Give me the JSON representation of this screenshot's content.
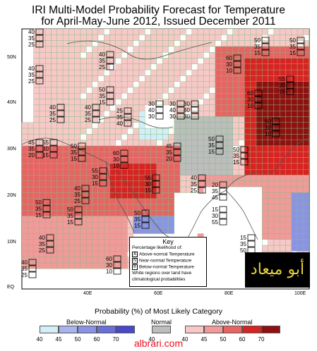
{
  "title": {
    "line1": "IRI Multi-Model Probability Forecast for Temperature",
    "line2": "for April-May-June 2012, Issued December 2011"
  },
  "axes": {
    "lat_labels": [
      "50N",
      "40N",
      "30N",
      "20N",
      "10N",
      "EQ"
    ],
    "lon_labels": [
      "40E",
      "60E",
      "80E",
      "100E"
    ]
  },
  "key": {
    "title": "Key",
    "subtitle": "Percentage likelihood of:",
    "items": [
      {
        "letter": "A",
        "text": "Above-normal Temperature"
      },
      {
        "letter": "N",
        "text": "Near-normal Temperature"
      },
      {
        "letter": "B",
        "text": "Below-normal Temperature"
      }
    ],
    "note": "White regions over land have climatological probabilities"
  },
  "logo_text": "أبو ميعاد",
  "legend": {
    "title": "Probability (%) of Most Likely Category",
    "below_label": "Below-Normal",
    "normal_label": "Normal",
    "above_label": "Above-Normal",
    "below": {
      "ticks": [
        "40",
        "45",
        "50",
        "60",
        "70"
      ],
      "colors": [
        "#d4eef8",
        "#a9b3ee",
        "#8c93e4",
        "#6a6fd6",
        "#4a48c8"
      ]
    },
    "normal": {
      "ticks": [
        "40"
      ],
      "colors": [
        "#bdbdbd"
      ]
    },
    "above": {
      "ticks": [
        "40",
        "45",
        "50",
        "60",
        "70"
      ],
      "colors": [
        "#f8c8c8",
        "#f29a9a",
        "#e86464",
        "#d92222",
        "#8e1010"
      ]
    }
  },
  "forecast_labels": [
    {
      "a": "40",
      "n": "35",
      "b": "25"
    },
    {
      "a": "55",
      "n": "30",
      "b": "15"
    },
    {
      "a": "60",
      "n": "30",
      "b": "10"
    },
    {
      "a": "50",
      "n": "35",
      "b": "15"
    },
    {
      "a": "40",
      "n": "35",
      "b": "25"
    },
    {
      "a": "30",
      "n": "40",
      "b": "30"
    },
    {
      "a": "25",
      "n": "35",
      "b": "40"
    },
    {
      "a": "45",
      "n": "35",
      "b": "20"
    },
    {
      "a": "20",
      "n": "35",
      "b": "45"
    },
    {
      "a": "15",
      "n": "35",
      "b": "50"
    },
    {
      "a": "15",
      "n": "30",
      "b": "55"
    }
  ],
  "watermark": "albrari.com"
}
